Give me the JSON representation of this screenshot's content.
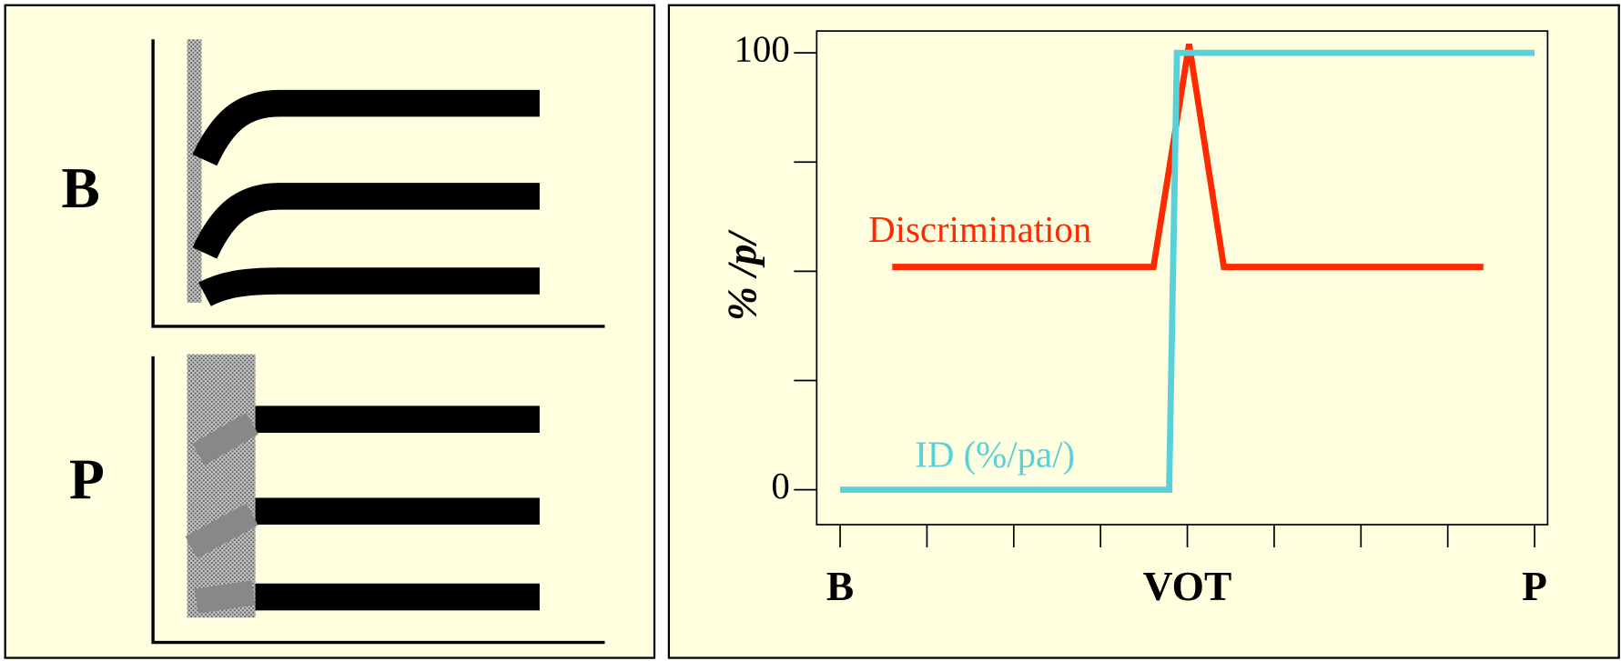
{
  "left_panel": {
    "labels": [
      "B",
      "P"
    ]
  },
  "chart_data": {
    "type": "line",
    "ylabel": "% /p/",
    "categories": [
      "B",
      null,
      null,
      null,
      "VOT",
      null,
      null,
      null,
      "P"
    ],
    "xlim": [
      -0.27,
      8.15
    ],
    "ylim": [
      -8,
      105
    ],
    "yticks": [
      0,
      100
    ],
    "yminor_ticks": [
      25,
      50,
      75
    ],
    "series": [
      {
        "name": "Discrimination",
        "color": "#ff2a00",
        "x": [
          0.6,
          3.61,
          4.02,
          4.42,
          7.41
        ],
        "values": [
          51,
          51,
          102,
          51,
          51
        ]
      },
      {
        "name": "ID (%/pa/)",
        "color": "#5ad0d8",
        "x": [
          0,
          3.79,
          3.88,
          8
        ],
        "values": [
          0,
          0,
          100,
          100
        ]
      }
    ]
  }
}
